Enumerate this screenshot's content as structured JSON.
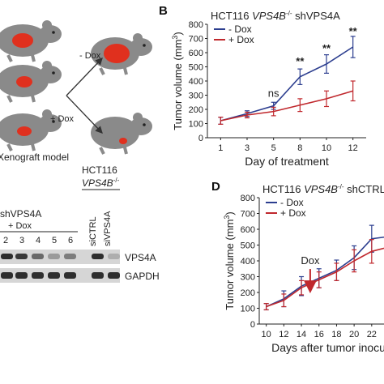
{
  "panel_labels": {
    "b": "B",
    "d": "D"
  },
  "panel_a": {
    "label_minus_dox": "- Dox",
    "label_plus_dox": "+ Dox",
    "caption": "Xenograft model"
  },
  "panel_c": {
    "cell_line_prefix": "HCT116",
    "cell_line_gene": "VPS4B",
    "cell_line_sup": "-/-",
    "group_label": "shVPS4A",
    "group_sub": "+ Dox",
    "lane_numbers": [
      "2",
      "3",
      "4",
      "5",
      "6"
    ],
    "si_lanes": [
      "siCTRL",
      "siVPS4A"
    ],
    "bands": [
      "VPS4A",
      "GAPDH"
    ]
  },
  "chart_data": [
    {
      "type": "line",
      "panel": "B",
      "title_prefix": "HCT116",
      "title_gene": "VPS4B",
      "title_sup": "-/-",
      "title_suffix": "shVPS4A",
      "xlabel": "Day of treatment",
      "ylabel": "Tumor volume (mm",
      "ylabel_sup": "3",
      "ylabel_end": ")",
      "categories": [
        "1",
        "3",
        "5",
        "8",
        "10",
        "12"
      ],
      "xlim": [
        0.5,
        6.5
      ],
      "ylim": [
        0,
        800
      ],
      "yticks": [
        "0",
        "100",
        "200",
        "300",
        "400",
        "500",
        "600",
        "700",
        "800"
      ],
      "series": [
        {
          "name": "- Dox",
          "color": "#2c3e8f",
          "values": [
            120,
            170,
            225,
            430,
            520,
            640
          ],
          "errors": [
            25,
            20,
            25,
            55,
            65,
            75
          ]
        },
        {
          "name": "+ Dox",
          "color": "#c0282d",
          "values": [
            120,
            160,
            185,
            230,
            275,
            330
          ],
          "errors": [
            25,
            20,
            30,
            45,
            55,
            70
          ]
        }
      ],
      "annotations": [
        {
          "x_index": 2,
          "text": "ns",
          "y": 290
        },
        {
          "x_index": 3,
          "text": "**",
          "y": 515
        },
        {
          "x_index": 4,
          "text": "**",
          "y": 605
        },
        {
          "x_index": 5,
          "text": "**",
          "y": 725
        }
      ],
      "legend_position": "top-left"
    },
    {
      "type": "line",
      "panel": "D",
      "title_prefix": "HCT116",
      "title_gene": "VPS4B",
      "title_sup": "-/-",
      "title_suffix": "shCTRL",
      "xlabel": "Days after tumor inocula",
      "ylabel": "Tumor volume (mm",
      "ylabel_sup": "3",
      "ylabel_end": ")",
      "x": [
        10,
        12,
        14,
        16,
        18,
        20,
        22
      ],
      "xticks": [
        "10",
        "12",
        "14",
        "16",
        "18",
        "20",
        "22"
      ],
      "xlim": [
        9.2,
        23.4
      ],
      "ylim": [
        0,
        800
      ],
      "yticks": [
        "0",
        "100",
        "200",
        "300",
        "400",
        "500",
        "600",
        "700",
        "800"
      ],
      "series": [
        {
          "name": "- Dox",
          "color": "#2c3e8f",
          "x": [
            10,
            12,
            14,
            16,
            18,
            20,
            22,
            23.4
          ],
          "values": [
            110,
            160,
            240,
            290,
            340,
            420,
            540,
            550
          ],
          "errors": [
            20,
            50,
            60,
            60,
            65,
            75,
            85,
            0
          ]
        },
        {
          "name": "+ Dox",
          "color": "#c0282d",
          "x": [
            10,
            12,
            14,
            16,
            18,
            20,
            22,
            23.4
          ],
          "values": [
            110,
            150,
            230,
            280,
            330,
            400,
            460,
            480
          ],
          "errors": [
            20,
            40,
            45,
            50,
            55,
            70,
            75,
            0
          ]
        }
      ],
      "arrow": {
        "text": "Dox",
        "x": 15,
        "y_tip": 215
      },
      "legend_position": "top-left"
    }
  ]
}
